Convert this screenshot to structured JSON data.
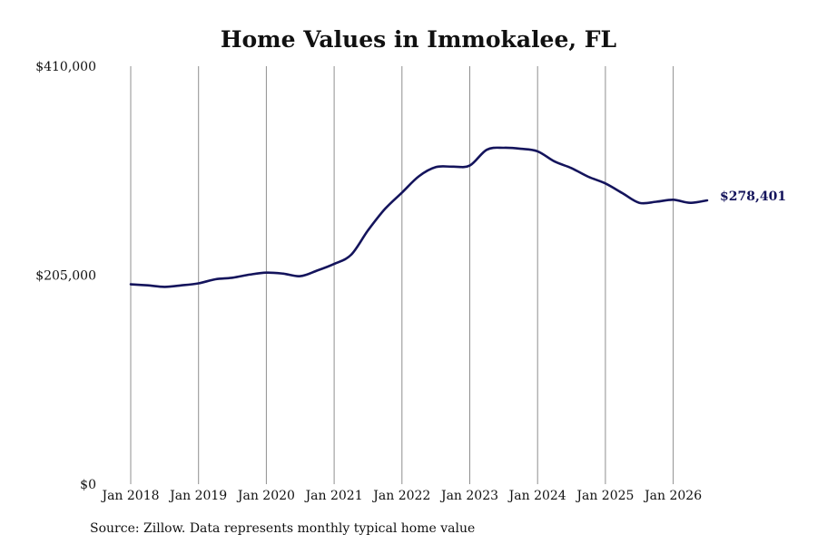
{
  "chart_data": {
    "type": "line",
    "title": "Home Values in Immokalee, FL",
    "xlabel": "",
    "ylabel": "",
    "ylim": [
      0,
      410000
    ],
    "y_ticks": [
      "$0",
      "$205,000",
      "$410,000"
    ],
    "x_ticks": [
      "Jan 2018",
      "Jan 2019",
      "Jan 2020",
      "Jan 2021",
      "Jan 2022",
      "Jan 2023",
      "Jan 2024",
      "Jan 2025",
      "Jan 2026"
    ],
    "grid": "vertical",
    "legend": "none",
    "source": "Source: Zillow. Data represents monthly typical home value",
    "end_label": "$278,401",
    "line_color": "#14145c",
    "series": [
      {
        "x": [
          "2018-01",
          "2018-04",
          "2018-07",
          "2018-10",
          "2019-01",
          "2019-04",
          "2019-07",
          "2019-10",
          "2020-01",
          "2020-04",
          "2020-07",
          "2020-10",
          "2021-01",
          "2021-04",
          "2021-07",
          "2021-10",
          "2022-01",
          "2022-04",
          "2022-07",
          "2022-10",
          "2023-01",
          "2023-04",
          "2023-07",
          "2023-10",
          "2024-01",
          "2024-04",
          "2024-07",
          "2024-10",
          "2025-01",
          "2025-04",
          "2025-07",
          "2025-10",
          "2026-01",
          "2026-04",
          "2026-07"
        ],
        "values": [
          196000,
          195000,
          193500,
          195000,
          197000,
          201000,
          202500,
          205500,
          207500,
          206500,
          204000,
          209500,
          216000,
          225000,
          249000,
          270000,
          286000,
          302000,
          311000,
          311500,
          312500,
          328000,
          330000,
          329000,
          326500,
          316500,
          310000,
          301500,
          295000,
          285500,
          276000,
          277000,
          279000,
          276000,
          278401
        ]
      }
    ]
  }
}
